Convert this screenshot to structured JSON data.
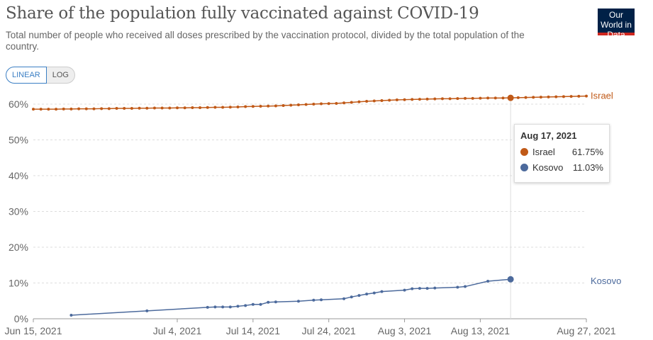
{
  "header": {
    "title": "Share of the population fully vaccinated against COVID-19",
    "subtitle": "Total number of people who received all doses prescribed by the vaccination protocol, divided by the total population of the country.",
    "logo": "Our World in Data"
  },
  "controls": {
    "linear": "LINEAR",
    "log": "LOG"
  },
  "tooltip": {
    "date": "Aug 17, 2021",
    "rows": [
      {
        "name": "Israel",
        "value": "61.75%"
      },
      {
        "name": "Kosovo",
        "value": "11.03%"
      }
    ]
  },
  "chart_data": {
    "type": "line",
    "title": "Share of the population fully vaccinated against COVID-19",
    "ylim": [
      0,
      62
    ],
    "y_ticks": [
      "0%",
      "10%",
      "20%",
      "30%",
      "40%",
      "50%",
      "60%"
    ],
    "x_ticks": [
      {
        "label": "Jun 15, 2021",
        "date": "2021-06-15"
      },
      {
        "label": "Jul 4, 2021",
        "date": "2021-07-04"
      },
      {
        "label": "Jul 14, 2021",
        "date": "2021-07-14"
      },
      {
        "label": "Jul 24, 2021",
        "date": "2021-07-24"
      },
      {
        "label": "Aug 3, 2021",
        "date": "2021-08-03"
      },
      {
        "label": "Aug 13, 2021",
        "date": "2021-08-13"
      },
      {
        "label": "Aug 27, 2021",
        "date": "2021-08-27"
      }
    ],
    "x_range": [
      "2021-06-15",
      "2021-08-27"
    ],
    "highlight_date": "2021-08-17",
    "series": [
      {
        "name": "Israel",
        "color": "#c05917",
        "start": "2021-06-15",
        "daily_values": [
          58.6,
          58.6,
          58.6,
          58.6,
          58.65,
          58.65,
          58.7,
          58.7,
          58.7,
          58.75,
          58.75,
          58.8,
          58.8,
          58.8,
          58.85,
          58.85,
          58.9,
          58.9,
          58.9,
          58.95,
          58.95,
          59.0,
          59.0,
          59.05,
          59.1,
          59.1,
          59.15,
          59.2,
          59.3,
          59.35,
          59.4,
          59.45,
          59.5,
          59.6,
          59.7,
          59.8,
          59.9,
          60.0,
          60.1,
          60.15,
          60.2,
          60.35,
          60.5,
          60.65,
          60.8,
          60.9,
          61.0,
          61.1,
          61.2,
          61.25,
          61.3,
          61.35,
          61.4,
          61.45,
          61.5,
          61.5,
          61.55,
          61.6,
          61.6,
          61.65,
          61.7,
          61.7,
          61.72,
          61.75,
          61.8,
          61.85,
          61.9,
          61.95,
          62.0,
          62.05,
          62.1,
          62.15,
          62.2,
          62.25
        ]
      },
      {
        "name": "Kosovo",
        "color": "#4c6a9c",
        "points": [
          [
            "2021-06-20",
            1.0
          ],
          [
            "2021-06-30",
            2.2
          ],
          [
            "2021-07-08",
            3.2
          ],
          [
            "2021-07-09",
            3.3
          ],
          [
            "2021-07-10",
            3.3
          ],
          [
            "2021-07-11",
            3.3
          ],
          [
            "2021-07-12",
            3.5
          ],
          [
            "2021-07-13",
            3.7
          ],
          [
            "2021-07-14",
            4.0
          ],
          [
            "2021-07-15",
            4.0
          ],
          [
            "2021-07-16",
            4.6
          ],
          [
            "2021-07-17",
            4.7
          ],
          [
            "2021-07-20",
            4.9
          ],
          [
            "2021-07-22",
            5.2
          ],
          [
            "2021-07-23",
            5.3
          ],
          [
            "2021-07-26",
            5.6
          ],
          [
            "2021-07-27",
            6.1
          ],
          [
            "2021-07-28",
            6.5
          ],
          [
            "2021-07-29",
            6.9
          ],
          [
            "2021-07-30",
            7.2
          ],
          [
            "2021-07-31",
            7.6
          ],
          [
            "2021-08-03",
            8.0
          ],
          [
            "2021-08-04",
            8.4
          ],
          [
            "2021-08-05",
            8.5
          ],
          [
            "2021-08-06",
            8.5
          ],
          [
            "2021-08-07",
            8.6
          ],
          [
            "2021-08-10",
            8.8
          ],
          [
            "2021-08-11",
            9.0
          ],
          [
            "2021-08-14",
            10.5
          ],
          [
            "2021-08-17",
            11.03
          ]
        ]
      }
    ]
  }
}
